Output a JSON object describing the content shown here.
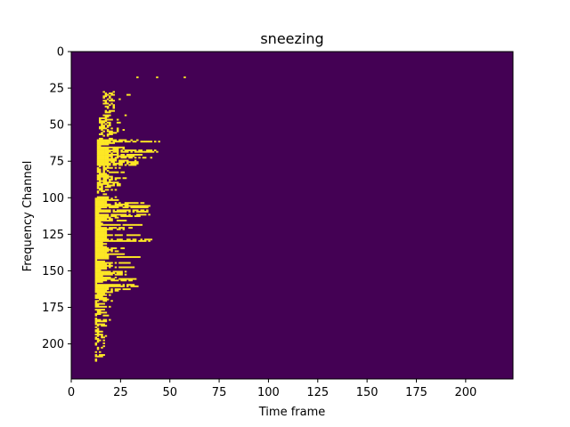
{
  "chart_data": {
    "type": "heatmap",
    "title": "sneezing",
    "xlabel": "Time frame",
    "ylabel": "Frequency Channel",
    "xlim": [
      0,
      224
    ],
    "ylim": [
      224,
      0
    ],
    "xticks": [
      0,
      25,
      50,
      75,
      100,
      125,
      150,
      175,
      200
    ],
    "yticks": [
      0,
      25,
      50,
      75,
      100,
      125,
      150,
      175,
      200
    ],
    "colormap": "viridis",
    "background_color": "#440154",
    "active_color": "#fde725",
    "grid": false,
    "legend": "none",
    "active_regions": [
      {
        "channels": [
          27,
          45
        ],
        "frames": [
          16,
          30
        ],
        "density": "sparse"
      },
      {
        "channels": [
          45,
          60
        ],
        "frames": [
          14,
          28
        ],
        "density": "sparse"
      },
      {
        "channels": [
          60,
          78
        ],
        "frames": [
          13,
          44
        ],
        "density": "dense"
      },
      {
        "channels": [
          78,
          100
        ],
        "frames": [
          13,
          28
        ],
        "density": "medium"
      },
      {
        "channels": [
          100,
          135
        ],
        "frames": [
          12,
          40
        ],
        "density": "dense"
      },
      {
        "channels": [
          135,
          165
        ],
        "frames": [
          12,
          34
        ],
        "density": "dense"
      },
      {
        "channels": [
          165,
          185
        ],
        "frames": [
          12,
          20
        ],
        "density": "medium"
      },
      {
        "channels": [
          185,
          212
        ],
        "frames": [
          12,
          17
        ],
        "density": "sparse"
      }
    ],
    "isolated_points": [
      {
        "frame": 33,
        "channel": 17
      },
      {
        "frame": 43,
        "channel": 17
      },
      {
        "frame": 57,
        "channel": 17
      }
    ]
  }
}
